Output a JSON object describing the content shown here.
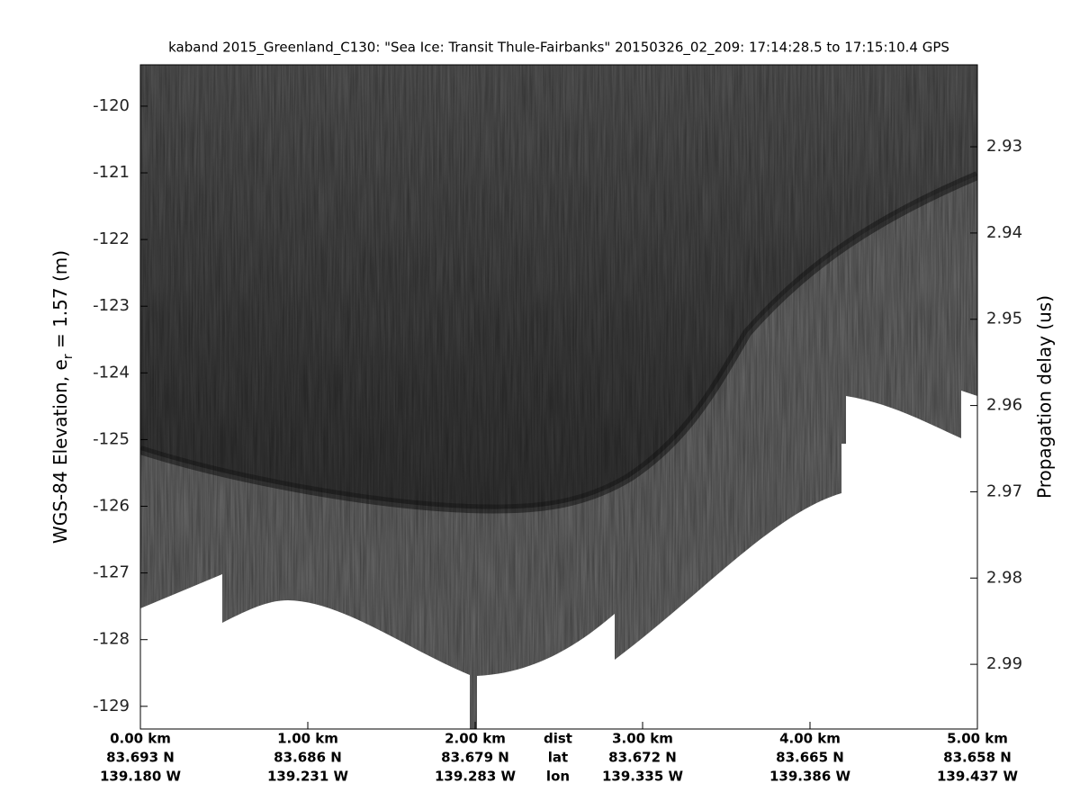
{
  "chart_data": {
    "type": "echogram",
    "title": "kaband 2015_Greenland_C130: \"Sea Ice: Transit Thule-Fairbanks\"  20150326_02_209: 17:14:28.5 to 17:15:10.4 GPS",
    "ylabel": "WGS-84 Elevation, e",
    "ylabel_subscript": "r",
    "ylabel_rest": " = 1.57 (m)",
    "y2label": "Propagation delay (us)",
    "xlim": [
      0,
      5
    ],
    "xticks": [
      {
        "value": 0,
        "label": "0.00 km"
      },
      {
        "value": 1,
        "label": "1.00 km"
      },
      {
        "value": 2,
        "label": "2.00 km"
      },
      {
        "value": 3,
        "label": "3.00 km"
      },
      {
        "value": 4,
        "label": "4.00 km"
      },
      {
        "value": 5,
        "label": "5.00 km"
      }
    ],
    "xrow_names": [
      "dist",
      "lat",
      "lon"
    ],
    "lat_labels": [
      "83.693 N",
      "83.686 N",
      "83.679 N",
      "83.672 N",
      "83.665 N",
      "83.658 N"
    ],
    "lon_labels": [
      "139.180 W",
      "139.231 W",
      "139.283 W",
      "139.335 W",
      "139.386 W",
      "139.437 W"
    ],
    "ylim": [
      -129.34,
      -119.38
    ],
    "yticks": [
      -120,
      -121,
      -122,
      -123,
      -124,
      -125,
      -126,
      -127,
      -128,
      -129
    ],
    "y2lim": [
      2.9975,
      2.9205
    ],
    "y2ticks": [
      2.93,
      2.94,
      2.95,
      2.96,
      2.97,
      2.98,
      2.99
    ]
  }
}
